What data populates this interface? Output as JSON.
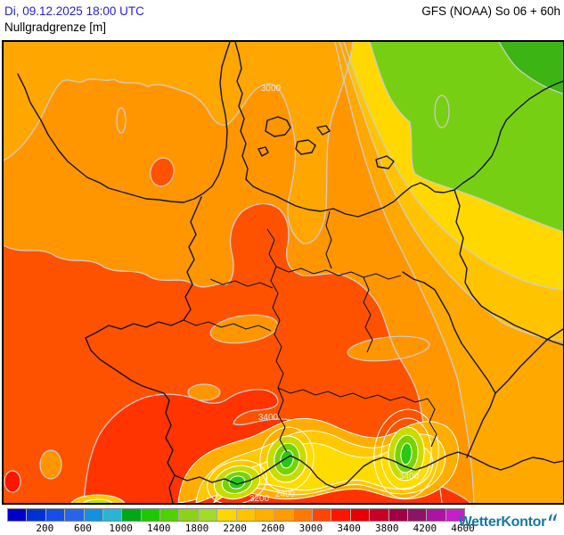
{
  "header": {
    "datetime": "Di, 09.12.2025 18:00 UTC",
    "model_run": "GFS (NOAA) So 06 + 60h",
    "parameter": "Nullgradgrenze [m]"
  },
  "map": {
    "contour_labels": [
      {
        "text": "3000"
      },
      {
        "text": "3400"
      },
      {
        "text": "3400"
      },
      {
        "text": "3200"
      },
      {
        "text": "2400"
      }
    ]
  },
  "colorbar": {
    "unit_values": [
      "200",
      "600",
      "1000",
      "1400",
      "1800",
      "2200",
      "2600",
      "3000",
      "3400",
      "3800",
      "4200",
      "4600"
    ],
    "colors": [
      "#0000c8",
      "#0032d2",
      "#1450e6",
      "#2864e6",
      "#1490dc",
      "#28b4d2",
      "#00a814",
      "#1ec800",
      "#50d200",
      "#8cd216",
      "#a0dc28",
      "#ffd700",
      "#ffc300",
      "#ffaf00",
      "#ff9b00",
      "#ff7800",
      "#ff4600",
      "#ff1400",
      "#e60000",
      "#c80028",
      "#a00046",
      "#8c1464",
      "#aa14a0",
      "#c81ec8"
    ]
  },
  "branding": {
    "logo_text": "WetterKontor"
  },
  "colors": {
    "datetime_text": "#2020e1",
    "logo": "#1577a8",
    "map_base": "#ff9600",
    "contour_line": "#cdcdcd",
    "border_line": "#141420"
  }
}
